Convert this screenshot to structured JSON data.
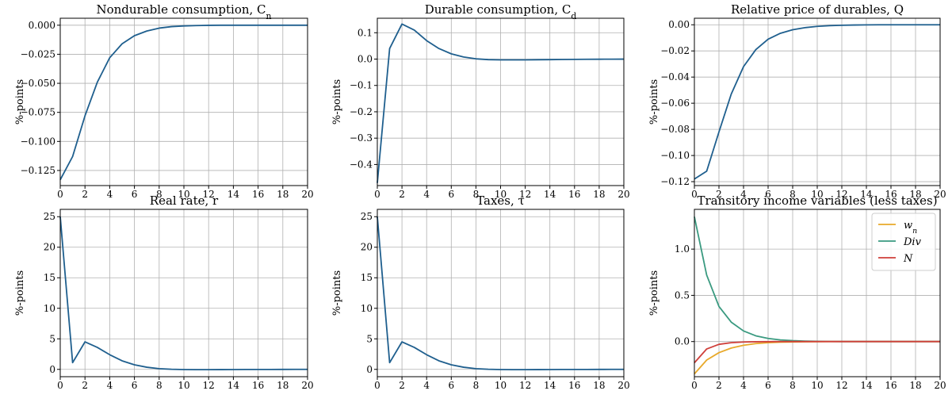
{
  "colors": {
    "blue": "#1f5f8e",
    "orange": "#e8a92a",
    "green": "#3a9a80",
    "red": "#cf3f3a"
  },
  "chart_data": [
    {
      "type": "line",
      "title": "Nondurable consumption, C",
      "title_sub": "n",
      "ylabel": "%-points",
      "xlim": [
        0,
        20
      ],
      "ylim": [
        -0.138,
        0.006
      ],
      "xticks": [
        0,
        2,
        4,
        6,
        8,
        10,
        12,
        14,
        16,
        18,
        20
      ],
      "yticks": [
        -0.125,
        -0.1,
        -0.075,
        -0.05,
        -0.025,
        0
      ],
      "ytick_labels": [
        "−0.125",
        "−0.100",
        "−0.075",
        "−0.050",
        "−0.025",
        "0.000"
      ],
      "grid": true,
      "x": [
        0,
        1,
        2,
        3,
        4,
        5,
        6,
        7,
        8,
        9,
        10,
        11,
        12,
        13,
        14,
        15,
        16,
        17,
        18,
        19,
        20
      ],
      "series": [
        {
          "color": "#1f5f8e",
          "values": [
            -0.133,
            -0.113,
            -0.078,
            -0.049,
            -0.028,
            -0.016,
            -0.009,
            -0.005,
            -0.0025,
            -0.0012,
            -0.0006,
            -0.0003,
            -0.0001,
            0,
            0,
            0,
            0,
            0,
            0,
            0,
            0
          ]
        }
      ]
    },
    {
      "type": "line",
      "title": "Durable consumption, C",
      "title_sub": "d",
      "ylabel": "%-points",
      "xlim": [
        0,
        20
      ],
      "ylim": [
        -0.48,
        0.155
      ],
      "xticks": [
        0,
        2,
        4,
        6,
        8,
        10,
        12,
        14,
        16,
        18,
        20
      ],
      "yticks": [
        -0.4,
        -0.3,
        -0.2,
        -0.1,
        0,
        0.1
      ],
      "ytick_labels": [
        "−0.4",
        "−0.3",
        "−0.2",
        "−0.1",
        "0.0",
        "0.1"
      ],
      "grid": true,
      "x": [
        0,
        1,
        2,
        3,
        4,
        5,
        6,
        7,
        8,
        9,
        10,
        11,
        12,
        13,
        14,
        15,
        16,
        17,
        18,
        19,
        20
      ],
      "series": [
        {
          "color": "#1f5f8e",
          "values": [
            -0.47,
            0.04,
            0.133,
            0.11,
            0.07,
            0.04,
            0.02,
            0.008,
            0.001,
            -0.002,
            -0.003,
            -0.003,
            -0.003,
            -0.0025,
            -0.002,
            -0.0015,
            -0.001,
            -0.0008,
            -0.0005,
            -0.0003,
            -0.0002
          ]
        }
      ]
    },
    {
      "type": "line",
      "title": "Relative price of durables, Q",
      "title_sub": "",
      "ylabel": "%-points",
      "xlim": [
        0,
        20
      ],
      "ylim": [
        -0.123,
        0.005
      ],
      "xticks": [
        0,
        2,
        4,
        6,
        8,
        10,
        12,
        14,
        16,
        18,
        20
      ],
      "yticks": [
        -0.12,
        -0.1,
        -0.08,
        -0.06,
        -0.04,
        -0.02,
        0
      ],
      "ytick_labels": [
        "−0.12",
        "−0.10",
        "−0.08",
        "−0.06",
        "−0.04",
        "−0.02",
        "0.00"
      ],
      "grid": true,
      "x": [
        0,
        1,
        2,
        3,
        4,
        5,
        6,
        7,
        8,
        9,
        10,
        11,
        12,
        13,
        14,
        15,
        16,
        17,
        18,
        19,
        20
      ],
      "series": [
        {
          "color": "#1f5f8e",
          "values": [
            -0.118,
            -0.112,
            -0.082,
            -0.053,
            -0.032,
            -0.019,
            -0.011,
            -0.0065,
            -0.0038,
            -0.0022,
            -0.0012,
            -0.0007,
            -0.0004,
            -0.0002,
            -0.0001,
            0,
            0,
            0,
            0,
            0,
            0
          ]
        }
      ]
    },
    {
      "type": "line",
      "title": "Real rate, r",
      "title_sub": "",
      "ylabel": "%-points",
      "xlim": [
        0,
        20
      ],
      "ylim": [
        -1.2,
        26.2
      ],
      "xticks": [
        0,
        2,
        4,
        6,
        8,
        10,
        12,
        14,
        16,
        18,
        20
      ],
      "yticks": [
        0,
        5,
        10,
        15,
        20,
        25
      ],
      "ytick_labels": [
        "0",
        "5",
        "10",
        "15",
        "20",
        "25"
      ],
      "grid": true,
      "x": [
        0,
        1,
        2,
        3,
        4,
        5,
        6,
        7,
        8,
        9,
        10,
        11,
        12,
        13,
        14,
        15,
        16,
        17,
        18,
        19,
        20
      ],
      "series": [
        {
          "color": "#1f5f8e",
          "values": [
            25,
            1.1,
            4.5,
            3.6,
            2.4,
            1.4,
            0.75,
            0.35,
            0.12,
            0.02,
            -0.03,
            -0.05,
            -0.05,
            -0.04,
            -0.03,
            -0.02,
            -0.015,
            -0.01,
            -0.005,
            -0.003,
            0
          ]
        }
      ]
    },
    {
      "type": "line",
      "title": "Taxes, τ",
      "title_sub": "",
      "ylabel": "%-points",
      "xlim": [
        0,
        20
      ],
      "ylim": [
        -1.2,
        26.2
      ],
      "xticks": [
        0,
        2,
        4,
        6,
        8,
        10,
        12,
        14,
        16,
        18,
        20
      ],
      "yticks": [
        0,
        5,
        10,
        15,
        20,
        25
      ],
      "ytick_labels": [
        "0",
        "5",
        "10",
        "15",
        "20",
        "25"
      ],
      "grid": true,
      "x": [
        0,
        1,
        2,
        3,
        4,
        5,
        6,
        7,
        8,
        9,
        10,
        11,
        12,
        13,
        14,
        15,
        16,
        17,
        18,
        19,
        20
      ],
      "series": [
        {
          "color": "#1f5f8e",
          "values": [
            25,
            1.1,
            4.5,
            3.6,
            2.4,
            1.4,
            0.75,
            0.35,
            0.12,
            0.02,
            -0.03,
            -0.05,
            -0.05,
            -0.04,
            -0.03,
            -0.02,
            -0.015,
            -0.01,
            -0.005,
            -0.003,
            0
          ]
        }
      ]
    },
    {
      "type": "line",
      "title": "Transitory income variables (less taxes)",
      "title_sub": "",
      "ylabel": "%-points",
      "xlim": [
        0,
        20
      ],
      "ylim": [
        -0.38,
        1.43
      ],
      "xticks": [
        0,
        2,
        4,
        6,
        8,
        10,
        12,
        14,
        16,
        18,
        20
      ],
      "yticks": [
        0,
        0.5,
        1
      ],
      "ytick_labels": [
        "0.0",
        "0.5",
        "1.0"
      ],
      "grid": true,
      "legend": "top-right",
      "x": [
        0,
        1,
        2,
        3,
        4,
        5,
        6,
        7,
        8,
        9,
        10,
        11,
        12,
        13,
        14,
        15,
        16,
        17,
        18,
        19,
        20
      ],
      "series": [
        {
          "name": "w",
          "name_sub": "n",
          "color": "#e8a92a",
          "values": [
            -0.35,
            -0.2,
            -0.12,
            -0.07,
            -0.04,
            -0.022,
            -0.012,
            -0.007,
            -0.004,
            -0.002,
            -0.001,
            0,
            0,
            0,
            0,
            0,
            0,
            0,
            0,
            0,
            0
          ]
        },
        {
          "name": "Div",
          "name_sub": "",
          "color": "#3a9a80",
          "values": [
            1.35,
            0.72,
            0.38,
            0.21,
            0.115,
            0.062,
            0.034,
            0.018,
            0.01,
            0.005,
            0.003,
            0.001,
            0,
            0,
            0,
            0,
            0,
            0,
            0,
            0,
            0
          ]
        },
        {
          "name": "N",
          "name_sub": "",
          "color": "#cf3f3a",
          "values": [
            -0.23,
            -0.08,
            -0.03,
            -0.012,
            -0.005,
            -0.002,
            -0.001,
            0,
            0,
            0,
            0,
            0,
            0,
            0,
            0,
            0,
            0,
            0,
            0,
            0,
            0
          ]
        }
      ]
    }
  ]
}
